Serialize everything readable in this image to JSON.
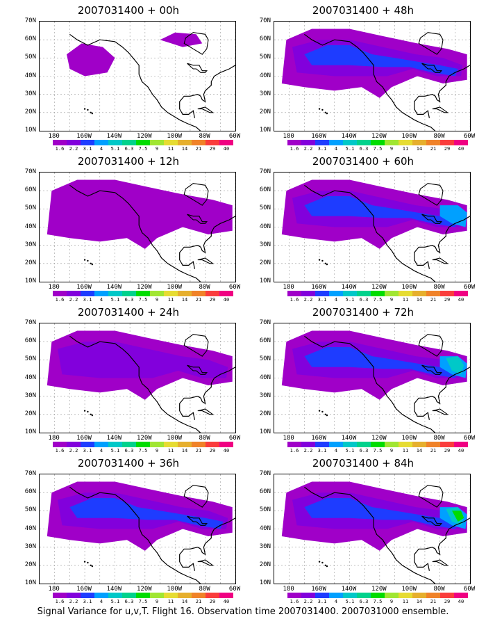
{
  "panels": [
    {
      "title": "2007031400 + 00h",
      "level": 0
    },
    {
      "title": "2007031400 + 48h",
      "level": 3
    },
    {
      "title": "2007031400 + 12h",
      "level": 1
    },
    {
      "title": "2007031400 + 60h",
      "level": 4
    },
    {
      "title": "2007031400 + 24h",
      "level": 2
    },
    {
      "title": "2007031400 + 72h",
      "level": 5
    },
    {
      "title": "2007031400 + 36h",
      "level": 3
    },
    {
      "title": "2007031400 + 84h",
      "level": 6
    }
  ],
  "lat_labels": [
    "70N",
    "60N",
    "50N",
    "40N",
    "30N",
    "20N",
    "10N"
  ],
  "lon_labels": [
    "180",
    "160W",
    "140W",
    "120W",
    "100W",
    "80W",
    "60W"
  ],
  "colorbar": {
    "labels": [
      "1.6",
      "2.2",
      "3.1",
      "4",
      "5.1",
      "6.3",
      "7.5",
      "9",
      "11",
      "14",
      "21",
      "29",
      "40"
    ],
    "colors": [
      "#a000c8",
      "#8200dc",
      "#1e3cff",
      "#00a0ff",
      "#00c8c8",
      "#00d28c",
      "#00dc00",
      "#a0e632",
      "#e6dc32",
      "#e6af2d",
      "#f08228",
      "#fa3c3c",
      "#f00082"
    ]
  },
  "caption": "Signal Variance for u,v,T. Flight 16. Observation time 2007031400. 2007031000 ensemble."
}
